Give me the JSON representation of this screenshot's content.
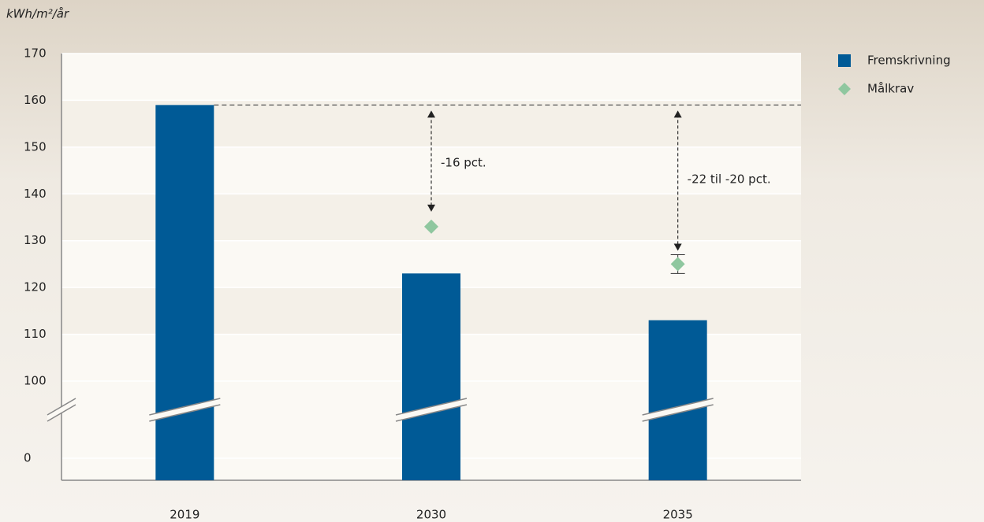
{
  "chart_data": {
    "type": "bar",
    "y_label": "kWh/m²/år",
    "categories": [
      "2019",
      "2030",
      "2035"
    ],
    "series": [
      {
        "name": "Fremskrivning",
        "color": "#005a96",
        "type": "bar",
        "values": [
          159,
          123,
          113
        ]
      },
      {
        "name": "Målkrav",
        "color": "#8fc79f",
        "type": "scatter",
        "values": [
          null,
          133,
          125
        ],
        "errors": [
          null,
          null,
          2
        ]
      }
    ],
    "annotations": [
      "-16 pct.",
      "-22 til -20 pct."
    ],
    "ylim": [
      0,
      170
    ],
    "y_break": [
      0,
      100
    ],
    "yticks": [
      0,
      100,
      110,
      120,
      130,
      140,
      150,
      160,
      170
    ],
    "grid": true,
    "legend": "right"
  }
}
